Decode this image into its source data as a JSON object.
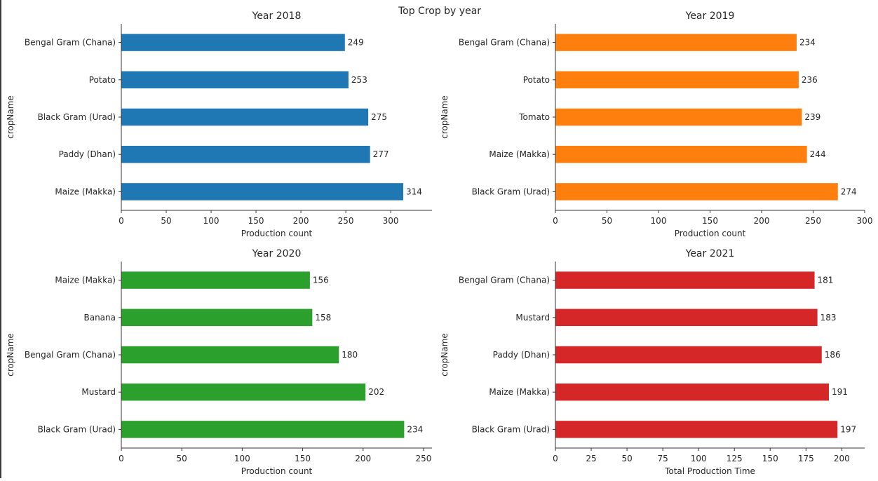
{
  "figure": {
    "title": "Top Crop by year"
  },
  "chart_data": [
    {
      "type": "bar",
      "orientation": "horizontal",
      "title": "Year 2018",
      "xlabel": "Production count",
      "ylabel": "cropName",
      "categories": [
        "Bengal Gram (Chana)",
        "Potato",
        "Black Gram (Urad)",
        "Paddy (Dhan)",
        "Maize (Makka)"
      ],
      "values": [
        249,
        253,
        275,
        277,
        314
      ],
      "data_labels": [
        "249",
        "253",
        "275",
        "277",
        "314"
      ],
      "xlim": [
        0,
        346
      ],
      "xticks": [
        0,
        50,
        100,
        150,
        200,
        250,
        300
      ],
      "xtick_labels": [
        "0",
        "50",
        "100",
        "150",
        "200",
        "250",
        "300"
      ],
      "color": "#1f77b4",
      "grid": false
    },
    {
      "type": "bar",
      "orientation": "horizontal",
      "title": "Year 2019",
      "xlabel": "Production count",
      "ylabel": "cropName",
      "categories": [
        "Bengal Gram (Chana)",
        "Potato",
        "Tomato",
        "Maize (Makka)",
        "Black Gram (Urad)"
      ],
      "values": [
        234,
        236,
        239,
        244,
        274
      ],
      "data_labels": [
        "234",
        "236",
        "239",
        "244",
        "274"
      ],
      "xlim": [
        0,
        300
      ],
      "xticks": [
        0,
        50,
        100,
        150,
        200,
        250,
        300
      ],
      "xtick_labels": [
        "0",
        "50",
        "100",
        "150",
        "200",
        "250",
        "300"
      ],
      "color": "#ff7f0e",
      "grid": false
    },
    {
      "type": "bar",
      "orientation": "horizontal",
      "title": "Year 2020",
      "xlabel": "Production count",
      "ylabel": "cropName",
      "categories": [
        "Maize (Makka)",
        "Banana",
        "Bengal Gram (Chana)",
        "Mustard",
        "Black Gram (Urad)"
      ],
      "values": [
        156,
        158,
        180,
        202,
        234
      ],
      "data_labels": [
        "156",
        "158",
        "180",
        "202",
        "234"
      ],
      "xlim": [
        0,
        257
      ],
      "xticks": [
        0,
        50,
        100,
        150,
        200,
        250
      ],
      "xtick_labels": [
        "0",
        "50",
        "100",
        "150",
        "200",
        "250"
      ],
      "color": "#2ca02c",
      "grid": false
    },
    {
      "type": "bar",
      "orientation": "horizontal",
      "title": "Year 2021",
      "xlabel": "Total Production Time",
      "ylabel": "cropName",
      "categories": [
        "Bengal Gram (Chana)",
        "Mustard",
        "Paddy (Dhan)",
        "Maize (Makka)",
        "Black Gram (Urad)"
      ],
      "values": [
        181,
        183,
        186,
        191,
        197
      ],
      "data_labels": [
        "181",
        "183",
        "186",
        "191",
        "197"
      ],
      "xlim": [
        0,
        216
      ],
      "xticks": [
        0,
        25,
        50,
        75,
        100,
        125,
        150,
        175,
        200
      ],
      "xtick_labels": [
        "0",
        "25",
        "50",
        "75",
        "100",
        "125",
        "150",
        "175",
        "200"
      ],
      "color": "#d62728",
      "grid": false
    }
  ]
}
